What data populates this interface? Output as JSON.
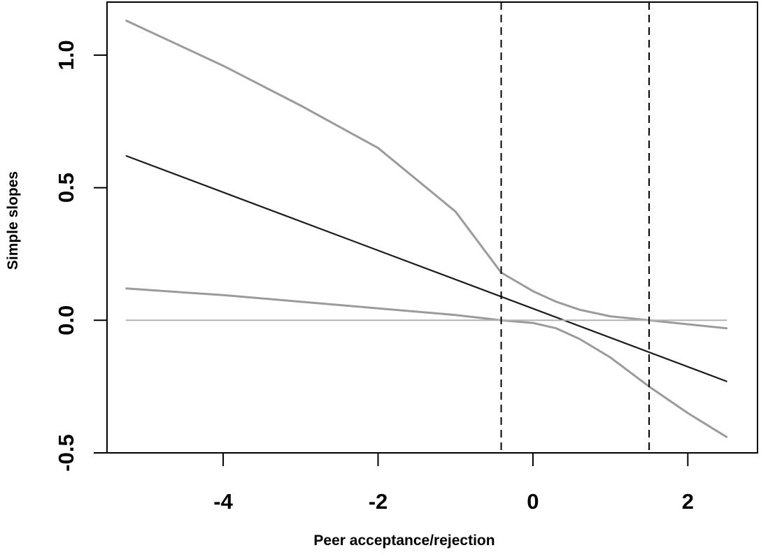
{
  "chart_data": {
    "type": "line",
    "title": "",
    "xlabel": "Peer acceptance/rejection",
    "ylabel": "Simple slopes",
    "xlim": [
      -5.5,
      2.9
    ],
    "ylim": [
      -0.5,
      1.2
    ],
    "x_ticks": [
      -4,
      -2,
      0,
      2
    ],
    "x_tick_labels": [
      "-4",
      "-2",
      "0",
      "2"
    ],
    "y_ticks": [
      -0.5,
      0.0,
      0.5,
      1.0
    ],
    "y_tick_labels": [
      "-0.5",
      "0.0",
      "0.5",
      "1.0"
    ],
    "grid": false,
    "legend": "none",
    "series": [
      {
        "role": "simple-slope",
        "color": "#1a1a1a",
        "style": "solid",
        "x": [
          -5.25,
          2.5
        ],
        "y": [
          0.62,
          -0.23
        ]
      },
      {
        "role": "upper-confidence-band",
        "color": "#9b9b9b",
        "style": "solid",
        "x": [
          -5.25,
          -4.0,
          -3.0,
          -2.0,
          -1.0,
          -0.41,
          0.0,
          0.3,
          0.6,
          1.0,
          1.5,
          2.0,
          2.5
        ],
        "y": [
          1.13,
          0.96,
          0.81,
          0.65,
          0.41,
          0.18,
          0.11,
          0.07,
          0.04,
          0.015,
          0.0,
          -0.015,
          -0.03
        ]
      },
      {
        "role": "lower-confidence-band",
        "color": "#9b9b9b",
        "style": "solid",
        "x": [
          -5.25,
          -4.0,
          -3.0,
          -2.0,
          -1.0,
          -0.41,
          0.0,
          0.3,
          0.6,
          1.0,
          1.5,
          2.0,
          2.5
        ],
        "y": [
          0.12,
          0.095,
          0.07,
          0.045,
          0.02,
          0.0,
          -0.01,
          -0.03,
          -0.07,
          -0.14,
          -0.25,
          -0.35,
          -0.44
        ]
      },
      {
        "role": "zero-reference",
        "color": "#b3b3b3",
        "style": "solid",
        "x": [
          -5.25,
          2.5
        ],
        "y": [
          0.0,
          0.0
        ]
      }
    ],
    "vlines": [
      {
        "role": "region-of-significance-lower",
        "x": -0.41,
        "color": "#000000",
        "style": "dashed"
      },
      {
        "role": "region-of-significance-upper",
        "x": 1.5,
        "color": "#000000",
        "style": "dashed"
      }
    ]
  }
}
